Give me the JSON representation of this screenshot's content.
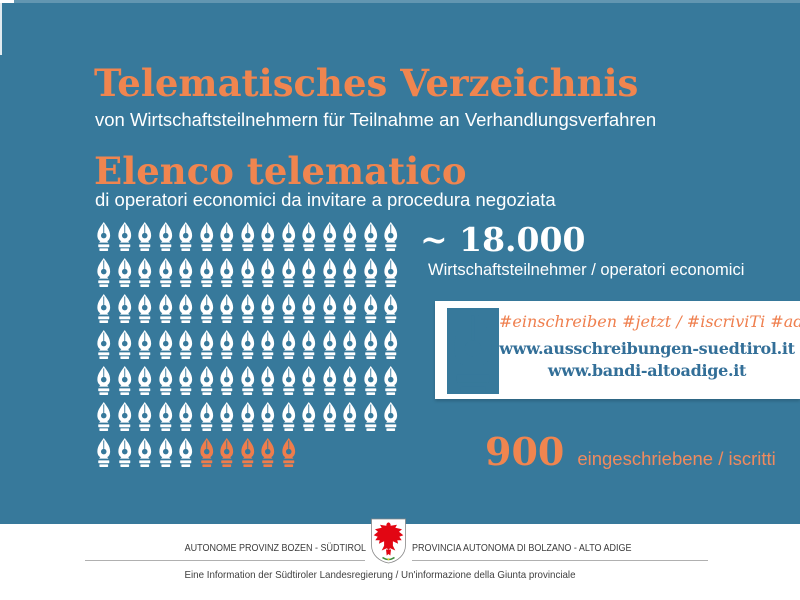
{
  "header": {
    "title_de": "Telematisches Verzeichnis",
    "subtitle_de": "von Wirtschaftsteilnehmern für Teilnahme an Verhandlungsverfahren",
    "title_it": "Elenco telematico",
    "subtitle_it": "di operatori economici da invitare a procedura negoziata"
  },
  "stats": {
    "total_value": "~ 18.000",
    "total_label": "Wirtschaftsteilnehmer / operatori economici",
    "registered_value": "900",
    "registered_label": "eingeschriebene / iscritti"
  },
  "cta": {
    "icon": "pen-nib-icon",
    "hashtags": "#einschreiben #jetzt / #iscriviTi #adesso",
    "url_de": "www.ausschreibungen-suedtirol.it",
    "url_it": "www.bandi-altoadige.it"
  },
  "pictogram": {
    "icon": "pen-nib-icon",
    "rows": [
      [
        15,
        0
      ],
      [
        15,
        0
      ],
      [
        15,
        0
      ],
      [
        15,
        0
      ],
      [
        15,
        0
      ],
      [
        15,
        0
      ],
      [
        5,
        5
      ]
    ],
    "white_count": 95,
    "orange_count": 5
  },
  "footer": {
    "org_de": "AUTONOME PROVINZ BOZEN - SÜDTIROL",
    "org_it": "PROVINCIA AUTONOMA DI BOLZANO - ALTO ADIGE",
    "crest": "south-tyrol-eagle-crest",
    "info": "Eine Information der Südtiroler Landesregierung / Un'informazione della Giunta provinciale"
  },
  "colors": {
    "background_teal": "#37799b",
    "accent_orange": "#f0854f",
    "icon_orange": "#ef7d4c",
    "link_teal": "#336f98",
    "white": "#ffffff"
  }
}
